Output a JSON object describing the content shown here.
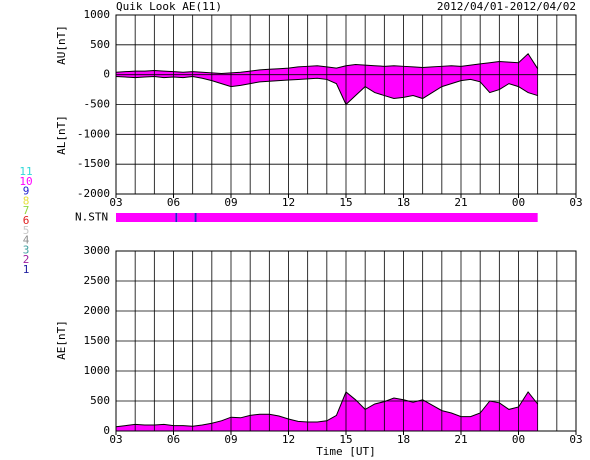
{
  "title": "Quik Look AE(11)",
  "date_range": "2012/04/01-2012/04/02",
  "chart_data": [
    {
      "type": "area",
      "y_labels": [
        "AU[nT]",
        "AL[nT]"
      ],
      "x": [
        0,
        0.5,
        1,
        1.5,
        2,
        2.5,
        3,
        3.5,
        4,
        4.5,
        5,
        5.5,
        6,
        6.5,
        7,
        7.5,
        8,
        8.5,
        9,
        9.5,
        10,
        10.5,
        11,
        11.5,
        12,
        12.5,
        13,
        13.5,
        14,
        14.5,
        15,
        15.5,
        16,
        16.5,
        17,
        17.5,
        18,
        18.5,
        19,
        19.5,
        20,
        20.5,
        21,
        21.5,
        22
      ],
      "xlim": [
        0,
        24
      ],
      "xticks": [
        {
          "value": 0,
          "label": "03"
        },
        {
          "value": 3,
          "label": "06"
        },
        {
          "value": 6,
          "label": "09"
        },
        {
          "value": 9,
          "label": "12"
        },
        {
          "value": 12,
          "label": "15"
        },
        {
          "value": 15,
          "label": "18"
        },
        {
          "value": 18,
          "label": "21"
        },
        {
          "value": 21,
          "label": "00"
        },
        {
          "value": 24,
          "label": "03"
        }
      ],
      "minor_grid_step": 1,
      "ylim": [
        -2000,
        1000
      ],
      "yticks": [
        -2000,
        -1500,
        -1000,
        -500,
        0,
        500,
        1000
      ],
      "grid": true,
      "color": "#ff00ff",
      "line_color": "#000000",
      "series": [
        {
          "values": [
            40,
            50,
            60,
            60,
            70,
            60,
            50,
            40,
            50,
            40,
            30,
            20,
            30,
            40,
            60,
            80,
            90,
            100,
            110,
            130,
            140,
            150,
            130,
            110,
            150,
            170,
            160,
            150,
            140,
            150,
            140,
            130,
            120,
            130,
            140,
            150,
            140,
            160,
            180,
            200,
            220,
            210,
            200,
            350,
            100
          ]
        },
        {
          "values": [
            -30,
            -40,
            -50,
            -40,
            -30,
            -50,
            -40,
            -50,
            -30,
            -60,
            -100,
            -150,
            -200,
            -180,
            -150,
            -120,
            -110,
            -100,
            -90,
            -80,
            -70,
            -60,
            -80,
            -150,
            -500,
            -350,
            -200,
            -300,
            -350,
            -400,
            -380,
            -350,
            -400,
            -300,
            -200,
            -150,
            -100,
            -80,
            -120,
            -300,
            -250,
            -150,
            -200,
            -300,
            -350
          ]
        }
      ]
    },
    {
      "type": "station_bar",
      "label": "N.STN",
      "xlim": [
        0,
        24
      ],
      "segments": [
        {
          "start": 0,
          "end": 3.1,
          "count": 10
        },
        {
          "start": 3.1,
          "end": 3.2,
          "count": 9
        },
        {
          "start": 3.2,
          "end": 4.1,
          "count": 10
        },
        {
          "start": 4.1,
          "end": 4.2,
          "count": 9
        },
        {
          "start": 4.2,
          "end": 22,
          "count": 10
        }
      ],
      "legend": [
        {
          "name": "11",
          "color": "#30d8d8"
        },
        {
          "name": "10",
          "color": "#ff00ff"
        },
        {
          "name": "9",
          "color": "#2020d0"
        },
        {
          "name": "8",
          "color": "#e8e040"
        },
        {
          "name": "7",
          "color": "#90d840"
        },
        {
          "name": "6",
          "color": "#e02020"
        },
        {
          "name": "5",
          "color": "#c8c8c8"
        },
        {
          "name": "4",
          "color": "#909090"
        },
        {
          "name": "3",
          "color": "#40a0a0"
        },
        {
          "name": "2",
          "color": "#a020a0"
        },
        {
          "name": "1",
          "color": "#2020a0"
        }
      ]
    },
    {
      "type": "area",
      "y_labels": [
        "AE[nT]"
      ],
      "xlabel": "Time [UT]",
      "x": [
        0,
        0.5,
        1,
        1.5,
        2,
        2.5,
        3,
        3.5,
        4,
        4.5,
        5,
        5.5,
        6,
        6.5,
        7,
        7.5,
        8,
        8.5,
        9,
        9.5,
        10,
        10.5,
        11,
        11.5,
        12,
        12.5,
        13,
        13.5,
        14,
        14.5,
        15,
        15.5,
        16,
        16.5,
        17,
        17.5,
        18,
        18.5,
        19,
        19.5,
        20,
        20.5,
        21,
        21.5,
        22
      ],
      "xlim": [
        0,
        24
      ],
      "xticks": [
        {
          "value": 0,
          "label": "03"
        },
        {
          "value": 3,
          "label": "06"
        },
        {
          "value": 6,
          "label": "09"
        },
        {
          "value": 9,
          "label": "12"
        },
        {
          "value": 12,
          "label": "15"
        },
        {
          "value": 15,
          "label": "18"
        },
        {
          "value": 18,
          "label": "21"
        },
        {
          "value": 21,
          "label": "00"
        },
        {
          "value": 24,
          "label": "03"
        }
      ],
      "minor_grid_step": 1,
      "ylim": [
        0,
        3000
      ],
      "yticks": [
        0,
        500,
        1000,
        1500,
        2000,
        2500,
        3000
      ],
      "grid": true,
      "color": "#ff00ff",
      "line_color": "#000000",
      "series": [
        {
          "values": [
            70,
            90,
            110,
            100,
            100,
            110,
            90,
            90,
            80,
            100,
            130,
            170,
            230,
            220,
            260,
            280,
            280,
            250,
            200,
            160,
            150,
            150,
            170,
            260,
            650,
            520,
            360,
            450,
            490,
            550,
            520,
            480,
            520,
            430,
            340,
            300,
            240,
            240,
            300,
            500,
            470,
            360,
            400,
            650,
            450
          ]
        }
      ]
    }
  ]
}
